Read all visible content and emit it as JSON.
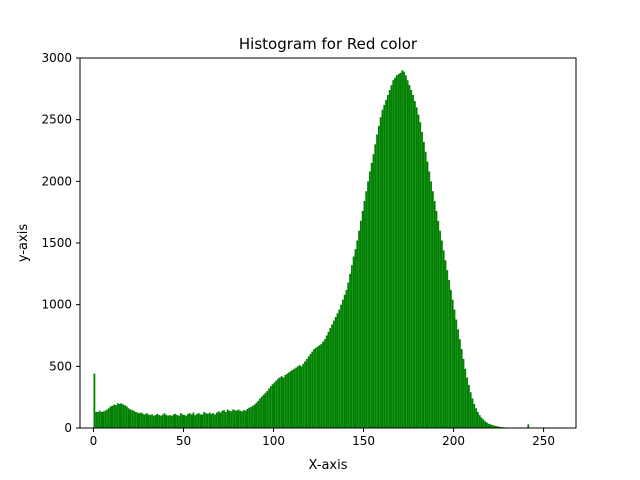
{
  "chart_data": {
    "type": "bar",
    "title": "Histogram for Red color",
    "xlabel": "X-axis",
    "ylabel": "y-axis",
    "xlim": [
      -7.5,
      268
    ],
    "ylim": [
      0,
      3000
    ],
    "x_ticks": [
      0,
      50,
      100,
      150,
      200,
      250
    ],
    "y_ticks": [
      0,
      500,
      1000,
      1500,
      2000,
      2500,
      3000
    ],
    "grid": false,
    "legend": "none",
    "bar_color": "#008000",
    "series": [
      {
        "x_start": 0,
        "bin_width": 1,
        "values": [
          440,
          130,
          130,
          140,
          130,
          135,
          140,
          150,
          160,
          175,
          180,
          190,
          185,
          200,
          195,
          200,
          190,
          185,
          175,
          160,
          150,
          145,
          140,
          130,
          125,
          120,
          125,
          115,
          110,
          120,
          110,
          105,
          110,
          100,
          105,
          115,
          105,
          100,
          110,
          120,
          105,
          100,
          105,
          100,
          110,
          115,
          105,
          100,
          120,
          110,
          105,
          100,
          115,
          120,
          110,
          125,
          105,
          115,
          120,
          110,
          110,
          130,
          120,
          115,
          125,
          115,
          120,
          110,
          125,
          135,
          125,
          140,
          145,
          130,
          150,
          140,
          135,
          150,
          145,
          140,
          150,
          140,
          135,
          145,
          140,
          155,
          165,
          170,
          180,
          190,
          205,
          220,
          240,
          255,
          270,
          285,
          300,
          320,
          340,
          355,
          370,
          385,
          400,
          410,
          420,
          410,
          430,
          440,
          450,
          460,
          470,
          480,
          490,
          500,
          510,
          500,
          520,
          540,
          560,
          580,
          600,
          620,
          640,
          650,
          660,
          670,
          680,
          700,
          720,
          750,
          780,
          810,
          840,
          870,
          900,
          930,
          960,
          1000,
          1040,
          1080,
          1120,
          1180,
          1250,
          1320,
          1390,
          1450,
          1520,
          1600,
          1680,
          1760,
          1840,
          1920,
          2000,
          2080,
          2150,
          2220,
          2300,
          2380,
          2450,
          2520,
          2580,
          2620,
          2660,
          2700,
          2740,
          2780,
          2820,
          2840,
          2860,
          2870,
          2880,
          2900,
          2890,
          2860,
          2820,
          2780,
          2740,
          2700,
          2650,
          2600,
          2540,
          2480,
          2400,
          2320,
          2240,
          2160,
          2080,
          2000,
          1920,
          1840,
          1760,
          1680,
          1600,
          1520,
          1440,
          1360,
          1280,
          1200,
          1120,
          1040,
          960,
          880,
          800,
          720,
          640,
          560,
          480,
          410,
          350,
          290,
          240,
          195,
          160,
          130,
          105,
          85,
          70,
          55,
          45,
          35,
          30,
          25,
          20,
          16,
          13,
          10,
          8,
          6,
          5,
          4,
          3,
          3,
          2,
          2,
          2,
          1,
          1,
          1,
          1,
          1,
          1,
          30,
          1
        ]
      }
    ]
  }
}
